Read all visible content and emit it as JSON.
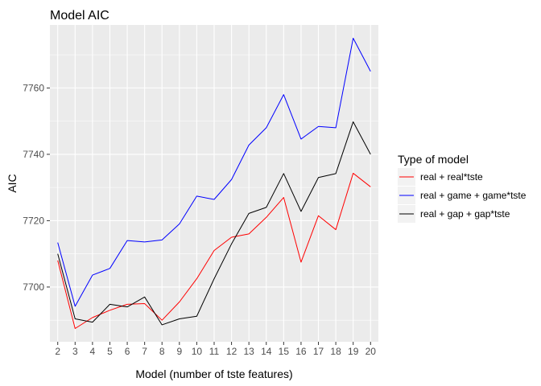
{
  "chart_data": {
    "type": "line",
    "title": "Model AIC",
    "xlabel": "Model (number of tste features)",
    "ylabel": "AIC",
    "x": [
      2,
      3,
      4,
      5,
      6,
      7,
      8,
      9,
      10,
      11,
      12,
      13,
      14,
      15,
      16,
      17,
      18,
      19,
      20
    ],
    "xlim": [
      1.55,
      20.45
    ],
    "ylim": [
      7683.5,
      7779
    ],
    "yticks": [
      7700,
      7720,
      7740,
      7760
    ],
    "grid": true,
    "legend": {
      "title": "Type of model",
      "placement": "right"
    },
    "series": [
      {
        "name": "real + real*tste",
        "color": "#ff0000",
        "values": [
          7708,
          7687.5,
          7690.8,
          7693,
          7694.8,
          7695,
          7690,
          7695.5,
          7702.5,
          7711,
          7715,
          7716,
          7721,
          7727,
          7707.5,
          7721.5,
          7717.3,
          7734.3,
          7730.2
        ]
      },
      {
        "name": "real + game + game*tste",
        "color": "#0000ff",
        "values": [
          7713.4,
          7694.2,
          7703.6,
          7705.6,
          7714,
          7713.6,
          7714.2,
          7719,
          7727.4,
          7726.4,
          7732.4,
          7742.8,
          7748,
          7758,
          7744.6,
          7748.4,
          7748,
          7775,
          7765
        ]
      },
      {
        "name": "real + gap + gap*tste",
        "color": "#000000",
        "values": [
          7710,
          7690.4,
          7689.4,
          7694.8,
          7694,
          7697,
          7688.6,
          7690.4,
          7691.2,
          7702.5,
          7713,
          7722.2,
          7724,
          7734.2,
          7722.8,
          7733,
          7734.2,
          7749.8,
          7740
        ]
      }
    ]
  }
}
